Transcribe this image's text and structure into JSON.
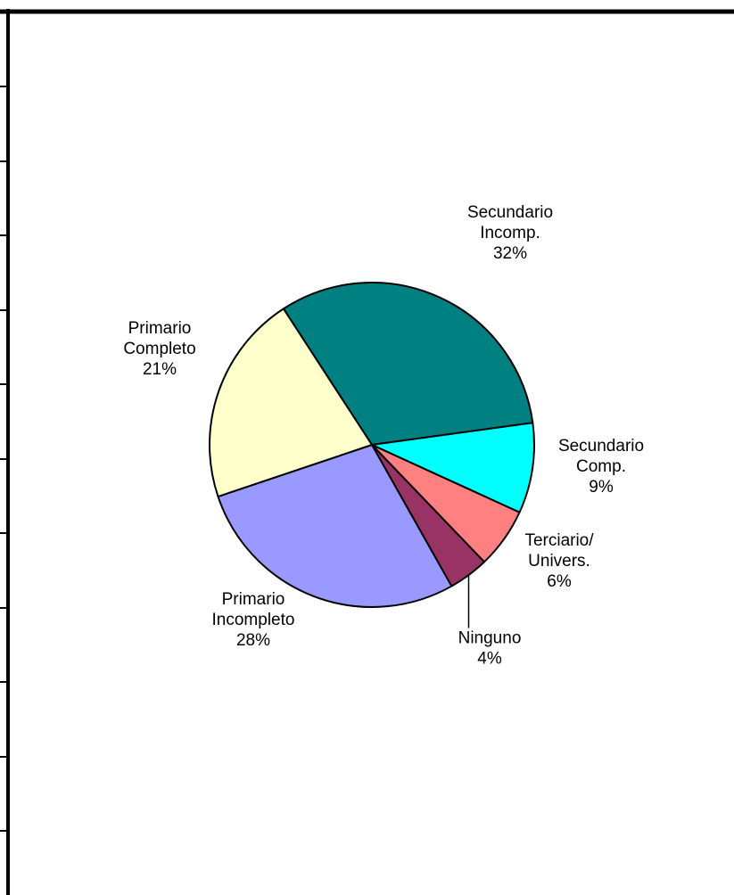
{
  "chart_data": {
    "type": "pie",
    "title": "",
    "start_angle_deg": -33,
    "direction": "clockwise",
    "slices": [
      {
        "label": [
          "Secundario",
          "Incomp."
        ],
        "percent_label": "32%",
        "value": 32,
        "color": "#008080"
      },
      {
        "label": [
          "Secundario",
          "Comp."
        ],
        "percent_label": "9%",
        "value": 9,
        "color": "#00FFFF"
      },
      {
        "label": [
          "Terciario/",
          "Univers."
        ],
        "percent_label": "6%",
        "value": 6,
        "color": "#FF8080"
      },
      {
        "label": [
          "Ninguno"
        ],
        "percent_label": "4%",
        "value": 4,
        "color": "#993366"
      },
      {
        "label": [
          "Primario",
          "Incompleto"
        ],
        "percent_label": "28%",
        "value": 28,
        "color": "#9999FF"
      },
      {
        "label": [
          "Primario",
          "Completo"
        ],
        "percent_label": "21%",
        "value": 21,
        "color": "#FFFFCC"
      }
    ]
  }
}
